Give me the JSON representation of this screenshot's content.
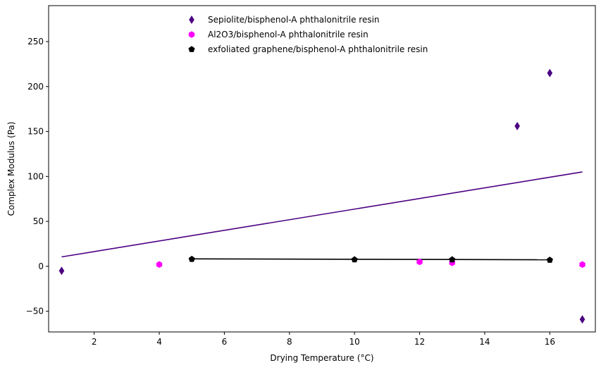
{
  "chart_data": {
    "type": "scatter",
    "xlabel": "Drying Temperature (°C)",
    "ylabel": "Complex Modulus (Pa)",
    "xlim": [
      0.6,
      17.4
    ],
    "ylim": [
      -73,
      290
    ],
    "xticks": [
      2,
      4,
      6,
      8,
      10,
      12,
      14,
      16
    ],
    "yticks": [
      -50,
      0,
      50,
      100,
      150,
      200,
      250
    ],
    "legend_position": "top-center",
    "grid": false,
    "series": [
      {
        "name": "Sepiolite/bisphenol-A phthalonitrile resin",
        "marker": "thin-diamond",
        "color": "#4b0082",
        "x": [
          1,
          15,
          16,
          17
        ],
        "y": [
          -5,
          156,
          215,
          -59
        ],
        "trend": {
          "x": [
            1,
            17
          ],
          "y": [
            10.5,
            105
          ],
          "color": "#4b0082"
        }
      },
      {
        "name": "Al2O3/bisphenol-A phthalonitrile resin",
        "marker": "hexagon",
        "color": "#ff00ff",
        "x": [
          4,
          12,
          13,
          17
        ],
        "y": [
          2,
          5,
          4,
          2
        ]
      },
      {
        "name": "exfoliated graphene/bisphenol-A phthalonitrile resin",
        "marker": "pentagon",
        "color": "#000000",
        "x": [
          5,
          10,
          13,
          16
        ],
        "y": [
          8,
          7.5,
          7.5,
          7
        ],
        "trend": {
          "x": [
            5,
            16
          ],
          "y": [
            8.3,
            7.3
          ],
          "color": "#000000"
        }
      }
    ]
  }
}
